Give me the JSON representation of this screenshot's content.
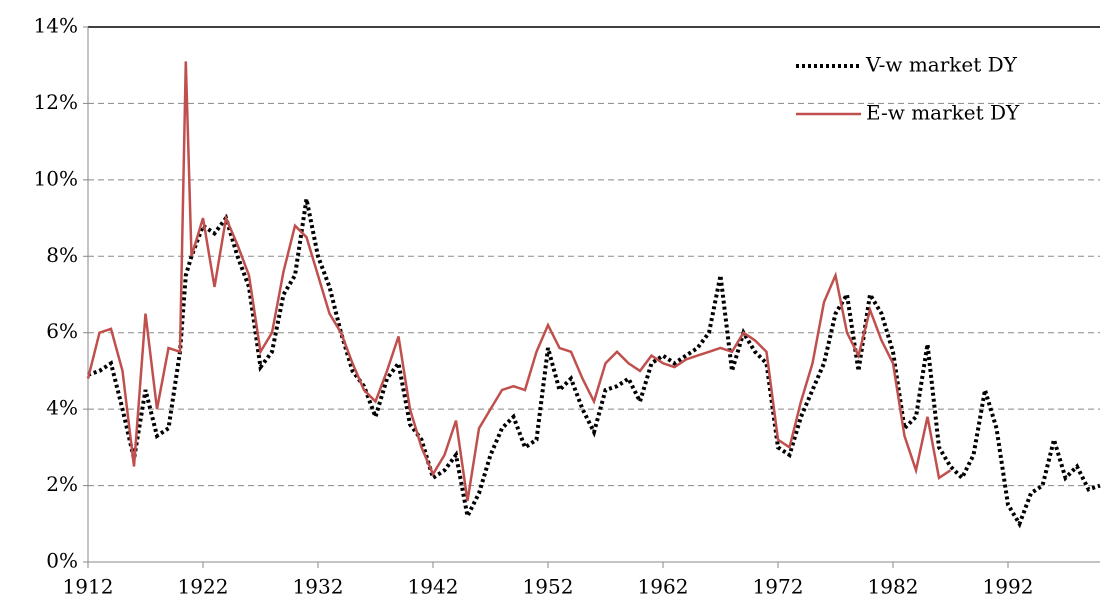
{
  "chart_data": {
    "type": "line",
    "x": [
      1912,
      1913,
      1914,
      1915,
      1916,
      1917,
      1918,
      1919,
      1920,
      1920.5,
      1921,
      1922,
      1923,
      1924,
      1925,
      1926,
      1927,
      1928,
      1929,
      1930,
      1931,
      1932,
      1933,
      1934,
      1935,
      1936,
      1937,
      1938,
      1939,
      1940,
      1941,
      1942,
      1943,
      1944,
      1945,
      1946,
      1947,
      1948,
      1949,
      1950,
      1951,
      1952,
      1953,
      1954,
      1955,
      1956,
      1957,
      1958,
      1959,
      1960,
      1961,
      1962,
      1963,
      1964,
      1965,
      1966,
      1967,
      1968,
      1969,
      1970,
      1971,
      1972,
      1973,
      1974,
      1975,
      1976,
      1977,
      1978,
      1979,
      1980,
      1981,
      1982,
      1983,
      1984,
      1985,
      1986,
      1987,
      1988,
      1989,
      1990,
      1991,
      1992,
      1993,
      1994,
      1995,
      1996,
      1997,
      1998,
      1999,
      2000
    ],
    "series": [
      {
        "name": "V-w market DY",
        "color": "#000000",
        "dashed": true,
        "values": [
          4.9,
          5.0,
          5.2,
          4.0,
          2.7,
          4.5,
          3.3,
          3.5,
          5.5,
          7.5,
          8.0,
          8.8,
          8.6,
          9.0,
          8.0,
          7.2,
          5.1,
          5.5,
          7.0,
          7.5,
          9.5,
          8.0,
          7.2,
          6.0,
          5.0,
          4.6,
          3.8,
          4.8,
          5.2,
          3.6,
          3.2,
          2.2,
          2.4,
          2.8,
          1.2,
          1.8,
          2.8,
          3.5,
          3.8,
          3.0,
          3.2,
          5.6,
          4.5,
          4.8,
          4.0,
          3.4,
          4.5,
          4.6,
          4.8,
          4.2,
          5.2,
          5.4,
          5.2,
          5.4,
          5.6,
          6.0,
          7.5,
          5.0,
          6.0,
          5.5,
          5.2,
          3.0,
          2.8,
          3.8,
          4.5,
          5.2,
          6.5,
          7.0,
          5.0,
          7.0,
          6.5,
          5.5,
          3.5,
          3.8,
          5.7,
          3.0,
          2.5,
          2.2,
          2.8,
          4.5,
          3.5,
          1.5,
          1.0,
          1.8,
          2.0,
          3.2,
          2.2,
          2.5,
          1.9,
          2.0
        ]
      },
      {
        "name": "E-w market DY",
        "color": "#c0504d",
        "dashed": false,
        "values": [
          4.8,
          6.0,
          6.1,
          5.0,
          2.5,
          6.5,
          4.0,
          5.6,
          5.5,
          13.1,
          8.0,
          9.0,
          7.2,
          9.0,
          8.3,
          7.5,
          5.5,
          6.0,
          7.6,
          8.8,
          8.5,
          7.5,
          6.5,
          6.0,
          5.2,
          4.5,
          4.2,
          5.0,
          5.9,
          4.0,
          3.0,
          2.3,
          2.8,
          3.7,
          1.6,
          3.5,
          4.0,
          4.5,
          4.6,
          4.5,
          5.5,
          6.2,
          5.6,
          5.5,
          4.8,
          4.2,
          5.2,
          5.5,
          5.2,
          5.0,
          5.4,
          5.2,
          5.1,
          5.3,
          5.4,
          5.5,
          5.6,
          5.5,
          6.0,
          5.8,
          5.5,
          3.2,
          3.0,
          4.2,
          5.2,
          6.8,
          7.5,
          6.0,
          5.4,
          6.6,
          5.8,
          5.2,
          3.3,
          2.4,
          3.8,
          2.2,
          2.4,
          null,
          null,
          null,
          null,
          null,
          null,
          null,
          null,
          null,
          null,
          null,
          null,
          null
        ]
      }
    ],
    "xlim": [
      1912,
      2000
    ],
    "xticks": [
      1912,
      1922,
      1932,
      1942,
      1952,
      1962,
      1972,
      1982,
      1992
    ],
    "ylim": [
      0,
      14
    ],
    "yticks": [
      {
        "value": 0,
        "label": "0%"
      },
      {
        "value": 2,
        "label": "2%"
      },
      {
        "value": 4,
        "label": "4%"
      },
      {
        "value": 6,
        "label": "6%"
      },
      {
        "value": 8,
        "label": "8%"
      },
      {
        "value": 10,
        "label": "10%"
      },
      {
        "value": 12,
        "label": "12%"
      },
      {
        "value": 14,
        "label": "14%"
      }
    ],
    "grid": true,
    "legend": "top-right"
  }
}
